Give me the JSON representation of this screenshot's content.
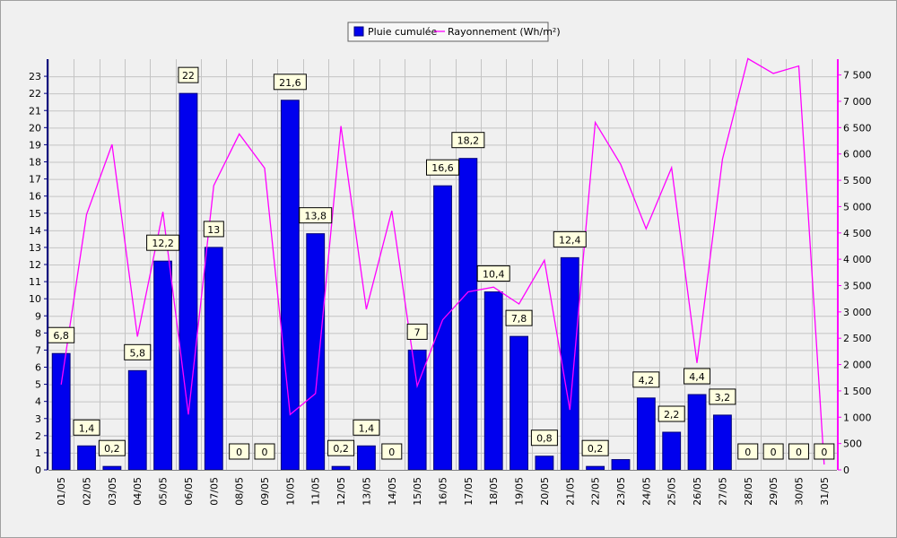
{
  "chart_data": {
    "type": "bar",
    "categories": [
      "01/05",
      "02/05",
      "03/05",
      "04/05",
      "05/05",
      "06/05",
      "07/05",
      "08/05",
      "09/05",
      "10/05",
      "11/05",
      "12/05",
      "13/05",
      "14/05",
      "15/05",
      "16/05",
      "17/05",
      "18/05",
      "19/05",
      "20/05",
      "21/05",
      "22/05",
      "23/05",
      "24/05",
      "25/05",
      "26/05",
      "27/05",
      "28/05",
      "29/05",
      "30/05",
      "31/05"
    ],
    "series": [
      {
        "name": "Pluie cumulée",
        "type": "bar",
        "axis": "left",
        "color": "#0000ee",
        "values": [
          6.8,
          1.4,
          0.2,
          5.8,
          12.2,
          22,
          13,
          0,
          0,
          21.6,
          13.8,
          0.2,
          1.4,
          0,
          7,
          16.6,
          18.2,
          10.4,
          7.8,
          0.8,
          12.4,
          0.2,
          0.6,
          4.2,
          2.2,
          4.4,
          3.2,
          0,
          0,
          0,
          0
        ],
        "labels": [
          "6,8",
          "1,4",
          "0,2",
          "5,8",
          "12,2",
          "22",
          "13",
          "0",
          "0",
          "21,6",
          "13,8",
          "0,2",
          "1,4",
          "0",
          "7",
          "16,6",
          "18,2",
          "10,4",
          "7,8",
          "0,8",
          "12,4",
          "0,2",
          "",
          "4,2",
          "2,2",
          "4,4",
          "3,2",
          "0",
          "0",
          "0",
          "0"
        ]
      },
      {
        "name": "Rayonnement (Wh/m²)",
        "type": "line",
        "axis": "right",
        "color": "#ff00ff",
        "values": [
          1620,
          4850,
          6180,
          2530,
          4900,
          1050,
          5400,
          6380,
          5730,
          1050,
          1450,
          6530,
          3050,
          4920,
          1590,
          2850,
          3380,
          3470,
          3150,
          3980,
          1140,
          6600,
          5800,
          4580,
          5740,
          2030,
          5900,
          7810,
          7530,
          7670,
          100
        ]
      }
    ],
    "y_left": {
      "min": 0,
      "max": 24,
      "ticks": [
        "0",
        "1",
        "2",
        "3",
        "4",
        "5",
        "6",
        "7",
        "8",
        "9",
        "10",
        "11",
        "12",
        "13",
        "14",
        "15",
        "16",
        "17",
        "18",
        "19",
        "20",
        "21",
        "22",
        "23"
      ]
    },
    "y_right": {
      "min": 0,
      "max": 7800,
      "ticks": [
        "0",
        "500",
        "1 000",
        "1 500",
        "2 000",
        "2 500",
        "3 000",
        "3 500",
        "4 000",
        "4 500",
        "5 000",
        "5 500",
        "6 000",
        "6 500",
        "7 000",
        "7 500"
      ]
    },
    "grid": true,
    "legend_position": "top-center",
    "colors": {
      "bar": "#0000ee",
      "bar_edge": "#00007a",
      "line": "#ff00ff",
      "plot_bg": "#f0f0f0",
      "grid": "#c4c4c4",
      "left_axis": "#000080",
      "right_axis": "#ff00ff",
      "label_bg": "#ffffe0"
    }
  }
}
